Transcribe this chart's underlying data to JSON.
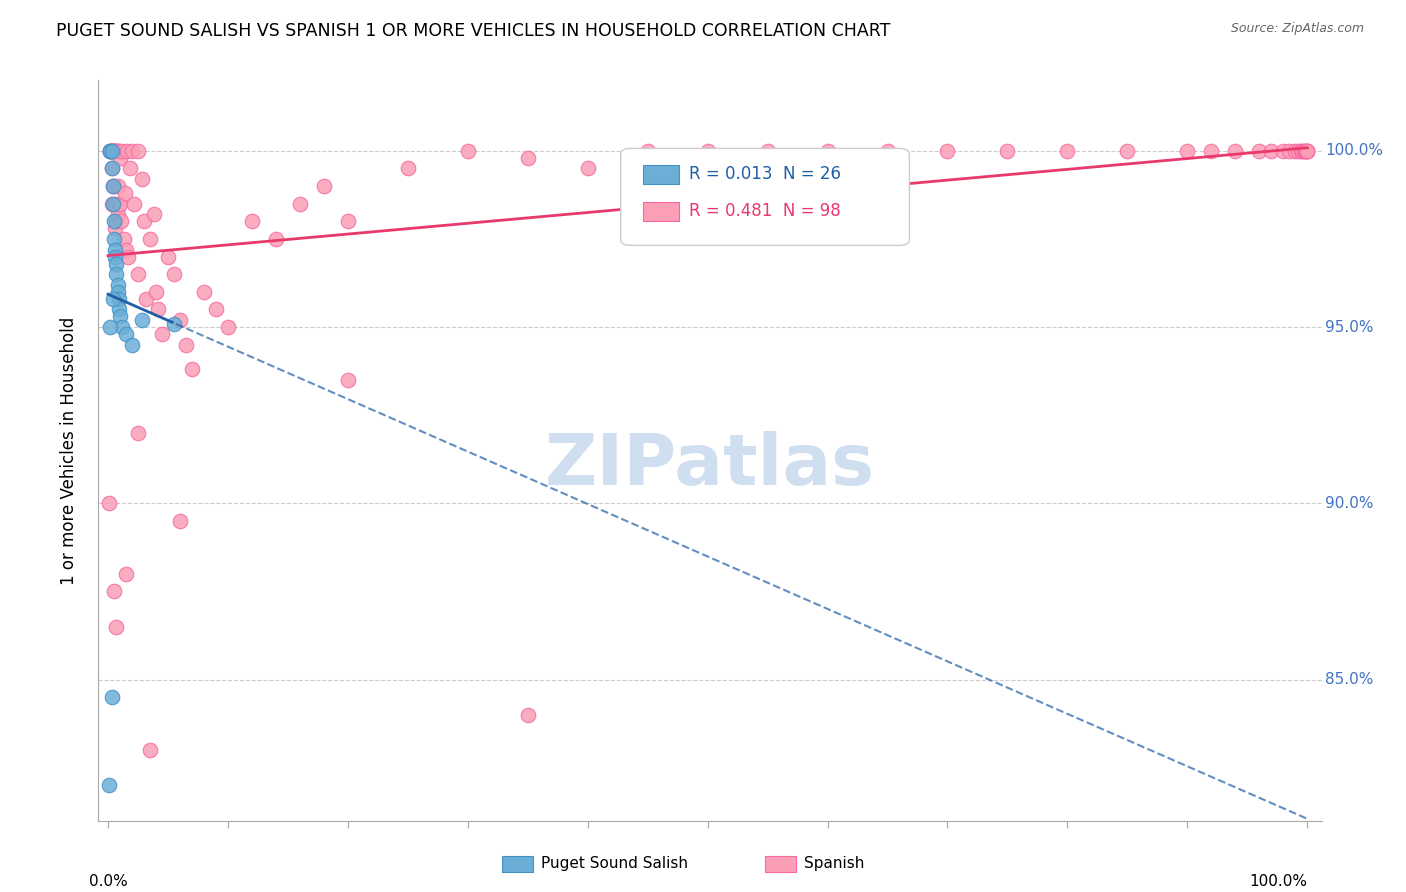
{
  "title": "PUGET SOUND SALISH VS SPANISH 1 OR MORE VEHICLES IN HOUSEHOLD CORRELATION CHART",
  "source": "Source: ZipAtlas.com",
  "ylabel": "1 or more Vehicles in Household",
  "blue_color": "#6baed6",
  "blue_edge": "#4292c6",
  "pink_color": "#fa9fb5",
  "pink_edge": "#f768a1",
  "trend_blue": "#1f5fa6",
  "trend_pink": "#e8396d",
  "R_blue": 0.013,
  "N_blue": 26,
  "R_pink": 0.481,
  "N_pink": 98,
  "blue_x": [
    0.001,
    0.002,
    0.002,
    0.003,
    0.003,
    0.004,
    0.004,
    0.005,
    0.005,
    0.006,
    0.006,
    0.007,
    0.007,
    0.008,
    0.008,
    0.009,
    0.009,
    0.01,
    0.012,
    0.015,
    0.02,
    0.028,
    0.055,
    0.003,
    0.002,
    0.004
  ],
  "blue_y": [
    82.0,
    100.0,
    100.0,
    100.0,
    99.5,
    99.0,
    98.5,
    98.0,
    97.5,
    97.2,
    97.0,
    96.8,
    96.5,
    96.2,
    96.0,
    95.8,
    95.5,
    95.3,
    95.0,
    94.8,
    94.5,
    95.2,
    95.1,
    84.5,
    95.0,
    95.8
  ],
  "pink_x": [
    0.001,
    0.002,
    0.002,
    0.003,
    0.003,
    0.003,
    0.003,
    0.004,
    0.004,
    0.004,
    0.005,
    0.005,
    0.005,
    0.006,
    0.006,
    0.006,
    0.006,
    0.007,
    0.007,
    0.007,
    0.008,
    0.008,
    0.008,
    0.009,
    0.009,
    0.01,
    0.01,
    0.011,
    0.012,
    0.013,
    0.014,
    0.015,
    0.016,
    0.017,
    0.018,
    0.02,
    0.022,
    0.025,
    0.025,
    0.028,
    0.03,
    0.032,
    0.035,
    0.038,
    0.04,
    0.042,
    0.045,
    0.05,
    0.055,
    0.06,
    0.065,
    0.07,
    0.08,
    0.09,
    0.1,
    0.12,
    0.14,
    0.16,
    0.18,
    0.2,
    0.25,
    0.3,
    0.35,
    0.4,
    0.45,
    0.5,
    0.55,
    0.6,
    0.65,
    0.7,
    0.75,
    0.8,
    0.85,
    0.9,
    0.92,
    0.94,
    0.96,
    0.97,
    0.98,
    0.985,
    0.99,
    0.992,
    0.995,
    0.996,
    0.997,
    0.998,
    0.999,
    1.0,
    1.0,
    1.0,
    0.005,
    0.007,
    0.015,
    0.025,
    0.035,
    0.06,
    0.2,
    0.35
  ],
  "pink_y": [
    90.0,
    100.0,
    100.0,
    100.0,
    100.0,
    99.5,
    98.5,
    100.0,
    100.0,
    99.0,
    100.0,
    100.0,
    99.0,
    100.0,
    100.0,
    98.5,
    97.8,
    100.0,
    100.0,
    98.0,
    100.0,
    99.0,
    98.2,
    100.0,
    98.5,
    99.8,
    98.5,
    98.0,
    100.0,
    97.5,
    98.8,
    97.2,
    100.0,
    97.0,
    99.5,
    100.0,
    98.5,
    100.0,
    96.5,
    99.2,
    98.0,
    95.8,
    97.5,
    98.2,
    96.0,
    95.5,
    94.8,
    97.0,
    96.5,
    95.2,
    94.5,
    93.8,
    96.0,
    95.5,
    95.0,
    98.0,
    97.5,
    98.5,
    99.0,
    98.0,
    99.5,
    100.0,
    99.8,
    99.5,
    100.0,
    100.0,
    100.0,
    100.0,
    100.0,
    100.0,
    100.0,
    100.0,
    100.0,
    100.0,
    100.0,
    100.0,
    100.0,
    100.0,
    100.0,
    100.0,
    100.0,
    100.0,
    100.0,
    100.0,
    100.0,
    100.0,
    100.0,
    100.0,
    100.0,
    100.0,
    87.5,
    86.5,
    88.0,
    92.0,
    83.0,
    89.5,
    93.5,
    84.0
  ],
  "ylim": [
    81.0,
    102.0
  ],
  "xlim": [
    -0.008,
    1.012
  ],
  "right_yticks": [
    85,
    90,
    95,
    100
  ],
  "right_yticklabels": [
    "85.0%",
    "90.0%",
    "95.0%",
    "100.0%"
  ],
  "right_ytick_color": "#4472c4",
  "watermark_text": "ZIPatlas",
  "watermark_color": "#d0dff0",
  "legend_label_blue": "Puget Sound Salish",
  "legend_label_pink": "Spanish"
}
